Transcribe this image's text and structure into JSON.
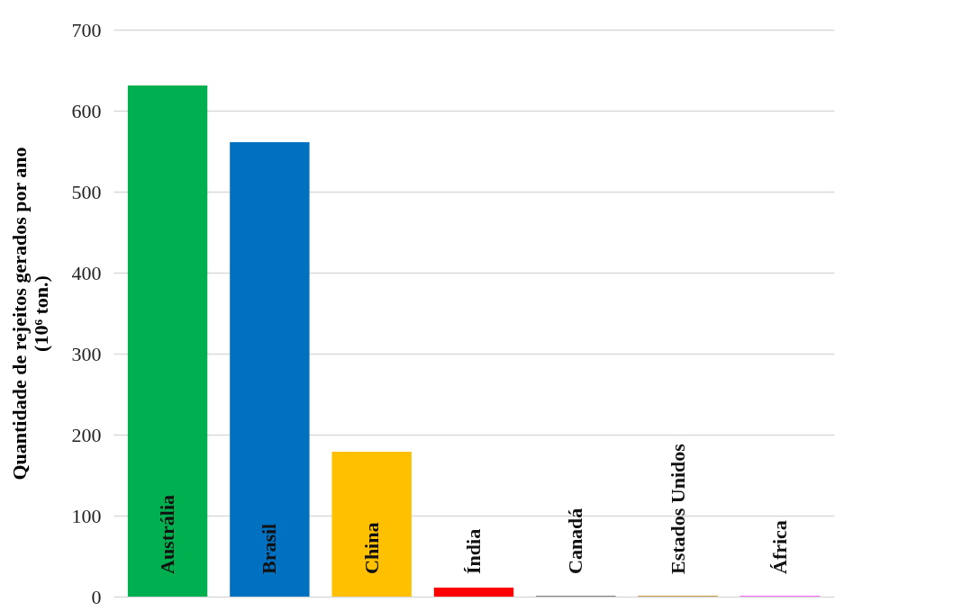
{
  "chart_data": {
    "type": "bar",
    "ylabel": "Quantidade de rejeitos gerados por ano (10⁶ ton.)",
    "categories": [
      "Austrália",
      "Brasil",
      "China",
      "Índia",
      "Canadá",
      "Estados Unidos",
      "África"
    ],
    "values": [
      631,
      561,
      179,
      11,
      1,
      1,
      1
    ],
    "colors": [
      "#00b050",
      "#0070c0",
      "#ffc000",
      "#ff0000",
      "#7f7f7f",
      "#bf9a3f",
      "#ff66ff"
    ],
    "ylim": [
      0,
      700
    ],
    "yticks": [
      0,
      100,
      200,
      300,
      400,
      500,
      600,
      700
    ],
    "grid": "y",
    "tick_labels": "y"
  }
}
